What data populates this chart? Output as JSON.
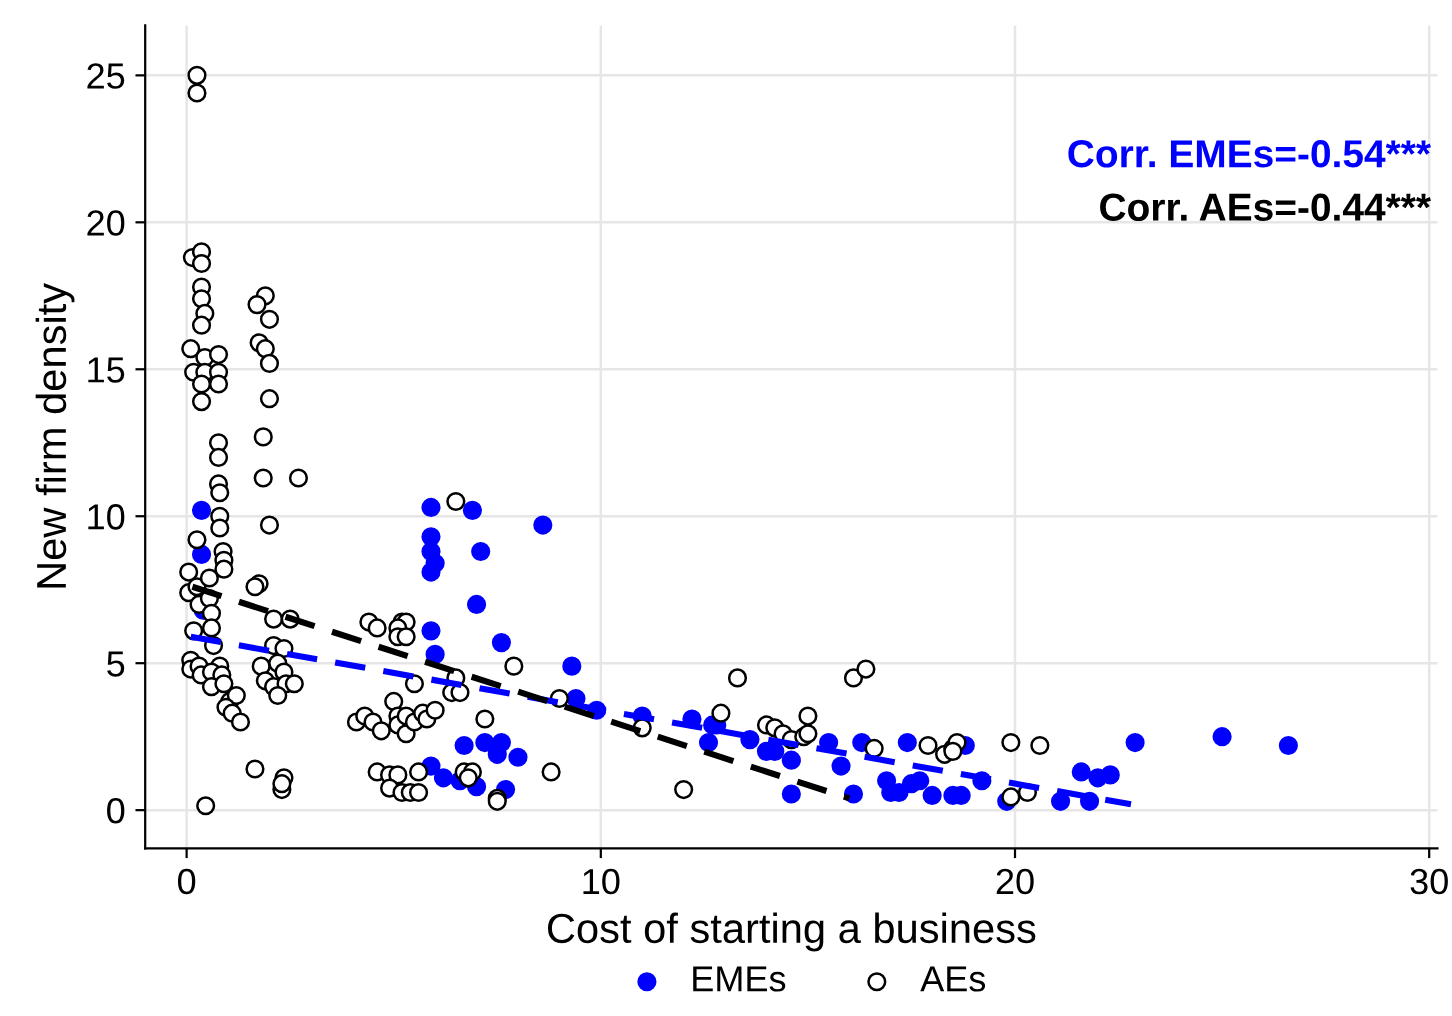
{
  "chart_data": {
    "type": "scatter",
    "xlabel": "Cost of starting a business",
    "ylabel": "New firm density",
    "xlim": [
      -1,
      30.2
    ],
    "ylim": [
      -1.3,
      26.7
    ],
    "xticks": [
      0,
      10,
      20,
      30
    ],
    "yticks": [
      0,
      5,
      10,
      15,
      20,
      25
    ],
    "grid": true,
    "legend": "bottom",
    "marker": "circle",
    "annotations": [
      "Corr. EMEs=-0.54***",
      "Corr. AEs=-0.44***"
    ],
    "series": [
      {
        "name": "EMEs",
        "color": "#0000ff",
        "x": [
          0.36,
          0.36,
          0.4,
          5.9,
          6.9,
          8.6,
          5.9,
          5.9,
          6.0,
          5.9,
          7.1,
          7.0,
          5.9,
          7.6,
          6.0,
          9.3,
          9.4,
          9.9,
          11.0,
          12.2,
          12.8,
          12.6,
          6.7,
          7.2,
          7.6,
          7.5,
          8.0,
          5.9,
          6.2,
          6.6,
          7.0,
          7.7,
          12.7,
          13.6,
          14.0,
          14.2,
          14.6,
          14.6,
          15.5,
          15.8,
          16.1,
          16.3,
          16.9,
          17.0,
          17.2,
          17.4,
          17.5,
          17.7,
          18.0,
          18.5,
          18.7,
          18.8,
          19.2,
          19.8,
          21.1,
          21.6,
          21.8,
          22.0,
          22.3,
          22.9,
          25.0,
          26.6
        ],
        "values": [
          10.2,
          8.7,
          6.8,
          10.3,
          10.2,
          9.7,
          9.3,
          8.8,
          8.4,
          8.1,
          8.8,
          7.0,
          6.1,
          5.7,
          5.3,
          4.9,
          3.8,
          3.4,
          3.2,
          3.1,
          2.9,
          2.3,
          2.2,
          2.3,
          2.3,
          1.9,
          1.8,
          1.5,
          1.1,
          1.0,
          0.8,
          0.7,
          2.9,
          2.4,
          2.0,
          2.0,
          1.7,
          0.55,
          2.3,
          1.5,
          0.55,
          2.3,
          1.0,
          0.6,
          0.6,
          2.3,
          0.9,
          1.0,
          0.5,
          0.5,
          0.5,
          2.2,
          1.0,
          0.3,
          0.3,
          1.3,
          0.3,
          1.1,
          1.2,
          2.3,
          2.5,
          2.2
        ]
      },
      {
        "name": "AEs",
        "color": "#ffffff",
        "x": [
          0.25,
          0.25,
          0.14,
          0.36,
          0.36,
          0.36,
          0.36,
          0.44,
          0.36,
          0.1,
          0.17,
          0.44,
          0.44,
          0.77,
          0.77,
          0.77,
          0.36,
          0.36,
          0.77,
          0.77,
          0.77,
          0.8,
          0.8,
          0.8,
          0.25,
          0.88,
          0.9,
          0.9,
          0.05,
          0.05,
          0.25,
          0.55,
          0.3,
          0.55,
          0.6,
          0.17,
          0.6,
          0.65,
          0.1,
          0.1,
          0.3,
          0.35,
          0.8,
          0.6,
          0.85,
          0.6,
          0.9,
          1.04,
          1.2,
          0.95,
          1.1,
          1.3,
          0.46,
          1.9,
          1.7,
          2.0,
          1.75,
          1.9,
          2.0,
          2.0,
          1.85,
          1.85,
          2.7,
          2.0,
          1.75,
          1.65,
          2.1,
          2.5,
          2.1,
          2.35,
          1.8,
          2.2,
          2.35,
          1.9,
          2.1,
          2.4,
          2.2,
          2.6,
          1.65,
          2.35,
          2.3,
          2.3,
          6.5,
          4.4,
          4.6,
          5.2,
          5.3,
          5.1,
          5.1,
          5.3,
          5.5,
          6.5,
          6.4,
          6.6,
          7.9,
          5.0,
          4.1,
          4.3,
          4.5,
          4.7,
          5.1,
          5.1,
          5.3,
          5.3,
          5.5,
          5.7,
          5.8,
          6.0,
          7.2,
          9.0,
          11.0,
          12.9,
          4.6,
          4.9,
          5.1,
          4.9,
          5.2,
          5.4,
          5.6,
          5.6,
          6.7,
          6.9,
          6.8,
          7.5,
          7.5,
          8.8,
          12.0,
          13.3,
          16.1,
          16.4,
          14.0,
          14.2,
          14.4,
          14.6,
          14.9,
          15.0,
          15.0,
          16.6,
          17.9,
          18.3,
          18.5,
          18.6,
          18.5,
          19.9,
          20.6,
          19.9,
          20.3
        ],
        "values": [
          25.0,
          24.4,
          18.8,
          19.0,
          18.6,
          17.8,
          17.4,
          16.9,
          16.5,
          15.7,
          14.9,
          15.4,
          14.9,
          15.5,
          14.9,
          14.5,
          14.5,
          13.9,
          12.5,
          12.0,
          11.1,
          10.8,
          10.0,
          9.6,
          9.2,
          8.8,
          8.5,
          8.2,
          8.1,
          7.4,
          7.6,
          7.9,
          7.0,
          7.2,
          6.7,
          6.1,
          6.2,
          5.6,
          5.1,
          4.8,
          4.9,
          4.6,
          4.9,
          4.7,
          4.6,
          4.2,
          4.3,
          3.7,
          3.9,
          3.5,
          3.3,
          3.0,
          0.15,
          17.5,
          17.2,
          16.7,
          15.9,
          15.7,
          15.2,
          14.0,
          12.7,
          11.3,
          11.3,
          9.7,
          7.7,
          7.6,
          6.5,
          6.5,
          5.6,
          5.5,
          4.9,
          5.0,
          4.7,
          4.4,
          4.2,
          4.3,
          3.9,
          4.3,
          1.4,
          1.1,
          0.7,
          0.9,
          10.5,
          6.4,
          6.2,
          6.4,
          6.4,
          6.2,
          5.9,
          5.9,
          4.3,
          4.5,
          4.0,
          4.0,
          4.9,
          3.7,
          3.0,
          3.2,
          3.0,
          2.7,
          3.2,
          2.9,
          3.2,
          2.6,
          3.0,
          3.3,
          3.1,
          3.4,
          3.1,
          3.8,
          2.8,
          3.3,
          1.3,
          1.2,
          1.2,
          0.75,
          0.6,
          0.6,
          0.6,
          1.3,
          1.3,
          1.3,
          1.1,
          0.4,
          0.3,
          1.3,
          0.7,
          4.5,
          4.5,
          4.8,
          2.9,
          2.8,
          2.6,
          2.4,
          2.5,
          3.2,
          2.6,
          2.1,
          2.2,
          1.9,
          2.1,
          2.3,
          2.0,
          2.3,
          2.2,
          0.45,
          0.6
        ]
      },
      {
        "type": "line",
        "color": "#0000ff",
        "line_style": "dashed",
        "marker": "none",
        "x": [
          0.1,
          22.8
        ],
        "values": [
          5.9,
          0.2
        ]
      },
      {
        "type": "line",
        "color": "#000000",
        "line_style": "dashed",
        "marker": "none",
        "x": [
          0.14,
          16.0
        ],
        "values": [
          7.6,
          0.4
        ]
      }
    ]
  }
}
